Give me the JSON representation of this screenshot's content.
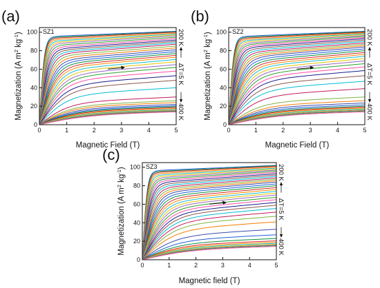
{
  "chart_data": [
    {
      "type": "line",
      "panel_label": "(a)",
      "sample": "SZ1",
      "xlabel": "Magnetic Field (T)",
      "ylabel_main": "Magnetization (A m",
      "ylabel_sup1": "2",
      "ylabel_mid": " kg",
      "ylabel_sup2": "-1",
      "ylabel_end": ")",
      "xlim": [
        0,
        5
      ],
      "ylim": [
        0,
        105
      ],
      "xticks": [
        0,
        1,
        2,
        3,
        4,
        5
      ],
      "yticks": [
        0,
        20,
        40,
        60,
        80,
        100
      ],
      "temp_start_label": "200 K",
      "temp_step_label": "ΔT=5 K",
      "temp_end_label": "400 K",
      "grid": false,
      "curves_summary": {
        "count": 41,
        "temperature_start_K": 200,
        "temperature_step_K": 5,
        "temperature_end_K": 400,
        "high_field_values_at_5T": [
          101,
          100.5,
          100,
          99,
          98,
          97,
          96,
          94.5,
          93,
          91.5,
          90,
          88.5,
          87,
          85,
          83,
          81,
          79,
          77,
          75,
          73,
          70.5,
          68,
          65,
          62,
          58,
          53,
          48,
          40,
          30,
          26,
          24,
          22,
          20.5,
          19.5,
          18.5,
          17.5,
          16.5,
          15.8,
          15.2,
          14.6,
          14
        ]
      }
    },
    {
      "type": "line",
      "panel_label": "(b)",
      "sample": "SZ2",
      "xlabel": "Magnetic Field (T)",
      "ylabel_main": "Magnetization (A m",
      "ylabel_sup1": "2",
      "ylabel_mid": " kg",
      "ylabel_sup2": "-1",
      "ylabel_end": ")",
      "xlim": [
        0,
        5
      ],
      "ylim": [
        0,
        105
      ],
      "xticks": [
        0,
        1,
        2,
        3,
        4,
        5
      ],
      "yticks": [
        0,
        20,
        40,
        60,
        80,
        100
      ],
      "temp_start_label": "200 K",
      "temp_step_label": "ΔT=5 K",
      "temp_end_label": "400 K",
      "grid": false,
      "curves_summary": {
        "count": 41,
        "temperature_start_K": 200,
        "temperature_step_K": 5,
        "temperature_end_K": 400,
        "high_field_values_at_5T": [
          101,
          100.5,
          100,
          99.2,
          98.4,
          97.5,
          96.5,
          95.4,
          94.2,
          93,
          91.5,
          90,
          88.5,
          87,
          85.5,
          84,
          82,
          80,
          78,
          76,
          74,
          71.5,
          69,
          66,
          62.5,
          58.5,
          53,
          47,
          39,
          30,
          26,
          23.5,
          21.5,
          20,
          19,
          18,
          17,
          16.2,
          15.5,
          14.8,
          14
        ]
      }
    },
    {
      "type": "line",
      "panel_label": "(c)",
      "sample": "SZ3",
      "xlabel": "Magnetic field (T)",
      "ylabel_main": "Magnetization (A m",
      "ylabel_sup1": "2",
      "ylabel_mid": " kg",
      "ylabel_sup2": "-1",
      "ylabel_end": ")",
      "xlim": [
        0,
        5
      ],
      "ylim": [
        0,
        105
      ],
      "xticks": [
        0,
        1,
        2,
        3,
        4,
        5
      ],
      "yticks": [
        0,
        20,
        40,
        60,
        80,
        100
      ],
      "temp_start_label": "200 K",
      "temp_step_label": "ΔT=5 K",
      "temp_end_label": "400 K",
      "grid": false,
      "curves_summary": {
        "count": 41,
        "temperature_start_K": 200,
        "temperature_step_K": 5,
        "temperature_end_K": 400,
        "high_field_values_at_5T": [
          102,
          101.5,
          101,
          100,
          99,
          98,
          97,
          95.8,
          94.5,
          93,
          91.5,
          90,
          88.5,
          87,
          85.5,
          84,
          82,
          80,
          78,
          76,
          74,
          72,
          70,
          67.5,
          65,
          62,
          59,
          55.5,
          51.5,
          47,
          41,
          33,
          27,
          23,
          20.5,
          19,
          17.8,
          16.8,
          16,
          15.3,
          14.6
        ]
      }
    }
  ],
  "palette": [
    "#1f5fd6",
    "#0a8f3c",
    "#d62728",
    "#ff8c00",
    "#17becf",
    "#e6c200",
    "#9467bd",
    "#2ca02c",
    "#ff4da6",
    "#1a1a8c",
    "#8c564b",
    "#00bcd4",
    "#c2185b",
    "#7cb342",
    "#f57c00",
    "#3949ab"
  ]
}
